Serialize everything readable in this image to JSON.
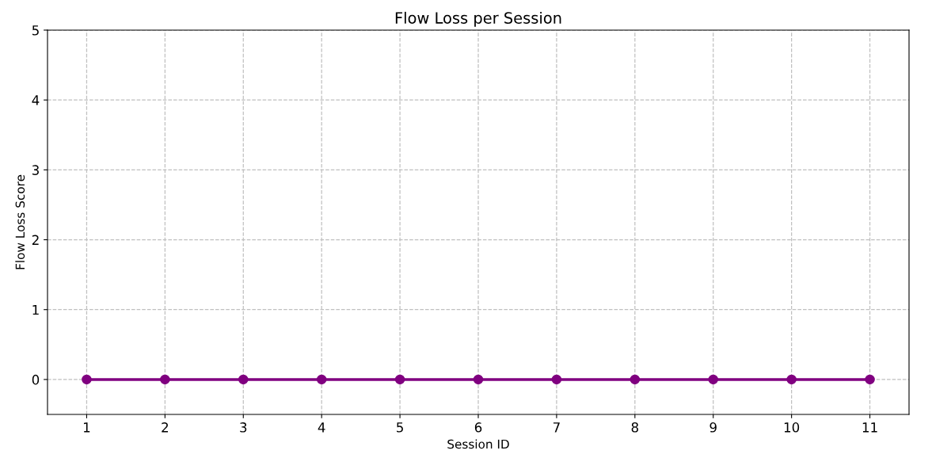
{
  "chart_data": {
    "type": "line",
    "title": "Flow Loss per Session",
    "xlabel": "Session ID",
    "ylabel": "Flow Loss Score",
    "x": [
      1,
      2,
      3,
      4,
      5,
      6,
      7,
      8,
      9,
      10,
      11
    ],
    "series": [
      {
        "color": "#800080",
        "values": [
          0,
          0,
          0,
          0,
          0,
          0,
          0,
          0,
          0,
          0,
          0
        ]
      }
    ],
    "xlim": [
      0.5,
      11.5
    ],
    "xticks": [
      1,
      2,
      3,
      4,
      5,
      6,
      7,
      8,
      9,
      10,
      11
    ],
    "ylim": [
      -0.5,
      5
    ],
    "yticks": [
      0,
      1,
      2,
      3,
      4,
      5
    ],
    "grid": true,
    "marker": "circle",
    "line_style": "solid"
  }
}
